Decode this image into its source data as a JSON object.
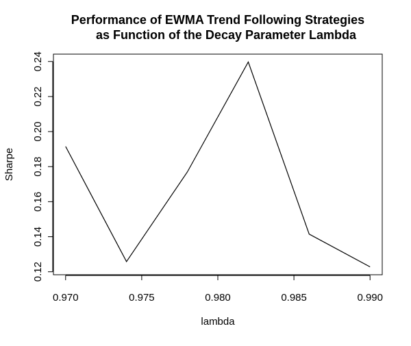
{
  "chart_data": {
    "type": "line",
    "title_lines": [
      "Performance of EWMA Trend Following Strategies",
      "as Function of the Decay Parameter Lambda"
    ],
    "xlabel": "lambda",
    "ylabel": "Sharpe",
    "x": [
      0.97,
      0.974,
      0.978,
      0.982,
      0.986,
      0.99
    ],
    "series": [
      {
        "values": [
          0.1915,
          0.1258,
          0.177,
          0.2397,
          0.1415,
          0.1228
        ]
      }
    ],
    "x_ticks": [
      0.97,
      0.975,
      0.98,
      0.985,
      0.99
    ],
    "x_tick_labels": [
      "0.970",
      "0.975",
      "0.980",
      "0.985",
      "0.990"
    ],
    "y_ticks": [
      0.12,
      0.14,
      0.16,
      0.18,
      0.2,
      0.22,
      0.24
    ],
    "y_tick_labels": [
      "0.12",
      "0.14",
      "0.16",
      "0.18",
      "0.20",
      "0.22",
      "0.24"
    ],
    "xlim": [
      0.9692,
      0.9908
    ],
    "ylim": [
      0.1183,
      0.2442
    ],
    "grid": false,
    "line_color": "#000000"
  }
}
